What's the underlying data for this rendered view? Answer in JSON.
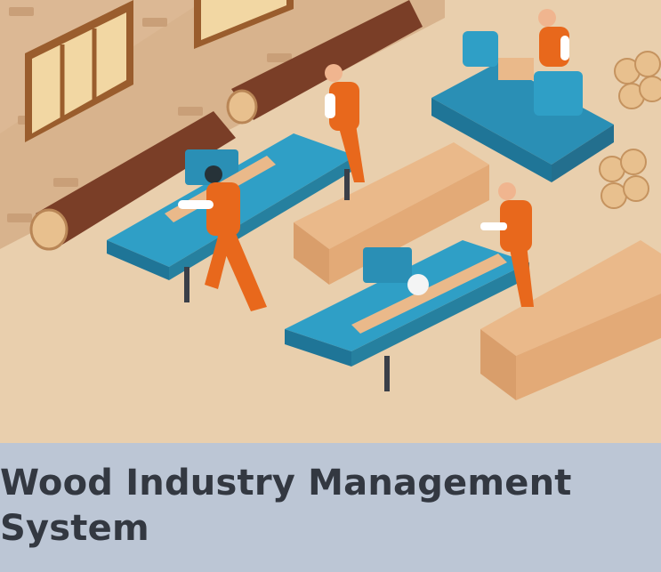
{
  "card": {
    "title": "Wood Industry Management System"
  },
  "illustration": {
    "subject": "sawmill-workshop",
    "colors": {
      "wall": "#d9b48f",
      "floor": "#e9cfad",
      "machine": "#2f9fc6",
      "uniform": "#e8681c",
      "log": "#7a3e27",
      "plank": "#eab98a"
    }
  },
  "caption": {
    "background": "#bcc6d5",
    "text_color": "#333841"
  }
}
